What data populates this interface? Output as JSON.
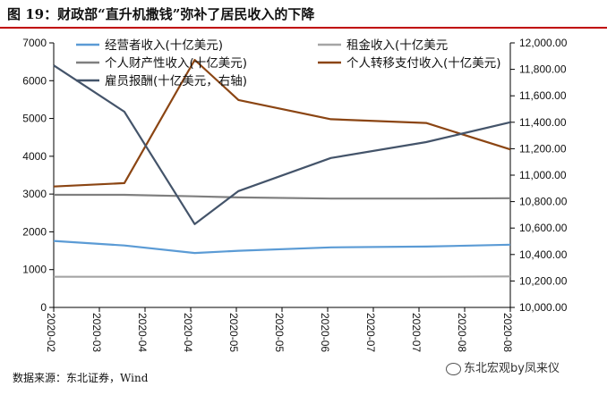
{
  "figure": {
    "title": "图 19：财政部“直升机撒钱”弥补了居民收入的下降",
    "source": "数据来源：东北证券，Wind",
    "watermark": "东北宏观by凤来仪"
  },
  "chart_data": {
    "type": "line",
    "categories": [
      "2020-02",
      "2020-03",
      "2020-04",
      "2020-04",
      "2020-05",
      "2020-05",
      "2020-06",
      "2020-07",
      "2020-07",
      "2020-08",
      "2020-08"
    ],
    "left_axis": {
      "ylim": [
        0,
        7000
      ],
      "ticks": [
        0,
        1000,
        2000,
        3000,
        4000,
        5000,
        6000,
        7000
      ]
    },
    "right_axis": {
      "ylim": [
        10000,
        12000
      ],
      "ticks": [
        "10,000.00",
        "10,200.00",
        "10,400.00",
        "10,600.00",
        "10,800.00",
        "11,000.00",
        "11,200.00",
        "11,400.00",
        "11,600.00",
        "11,800.00",
        "12,000.00"
      ]
    },
    "series": [
      {
        "name": "经营者收入(十亿美元)",
        "axis": "left",
        "color": "#5b9bd5",
        "x": [
          "2020-02",
          "2020-03",
          "2020-04",
          "2020-05",
          "2020-06",
          "2020-07",
          "2020-08"
        ],
        "values": [
          1760,
          1640,
          1440,
          1500,
          1590,
          1610,
          1660
        ]
      },
      {
        "name": "租金收入(十亿美元",
        "axis": "left",
        "color": "#a5a5a5",
        "x": [
          "2020-02",
          "2020-03",
          "2020-04",
          "2020-05",
          "2020-06",
          "2020-07",
          "2020-08"
        ],
        "values": [
          810,
          810,
          810,
          810,
          810,
          810,
          820
        ]
      },
      {
        "name": "个人财产性收入(十亿美元)",
        "axis": "left",
        "color": "#7f7f7f",
        "x": [
          "2020-02",
          "2020-03",
          "2020-04",
          "2020-05",
          "2020-06",
          "2020-07",
          "2020-08"
        ],
        "values": [
          2980,
          2980,
          2940,
          2910,
          2880,
          2880,
          2890
        ]
      },
      {
        "name": "个人转移支付收入(十亿美元)",
        "axis": "left",
        "color": "#8b4513",
        "x": [
          "2020-02",
          "2020-03",
          "2020-04",
          "2020-05",
          "2020-06",
          "2020-07",
          "2020-08"
        ],
        "values": [
          3200,
          3290,
          6550,
          5490,
          4980,
          4880,
          4180
        ]
      },
      {
        "name": "雇员报酬(十亿美元，右轴)",
        "axis": "right",
        "color": "#44546a",
        "x": [
          "2020-02",
          "2020-03",
          "2020-04",
          "2020-05",
          "2020-06",
          "2020-07",
          "2020-08"
        ],
        "values": [
          11830,
          11480,
          10630,
          10880,
          11130,
          11250,
          11400
        ]
      }
    ]
  }
}
